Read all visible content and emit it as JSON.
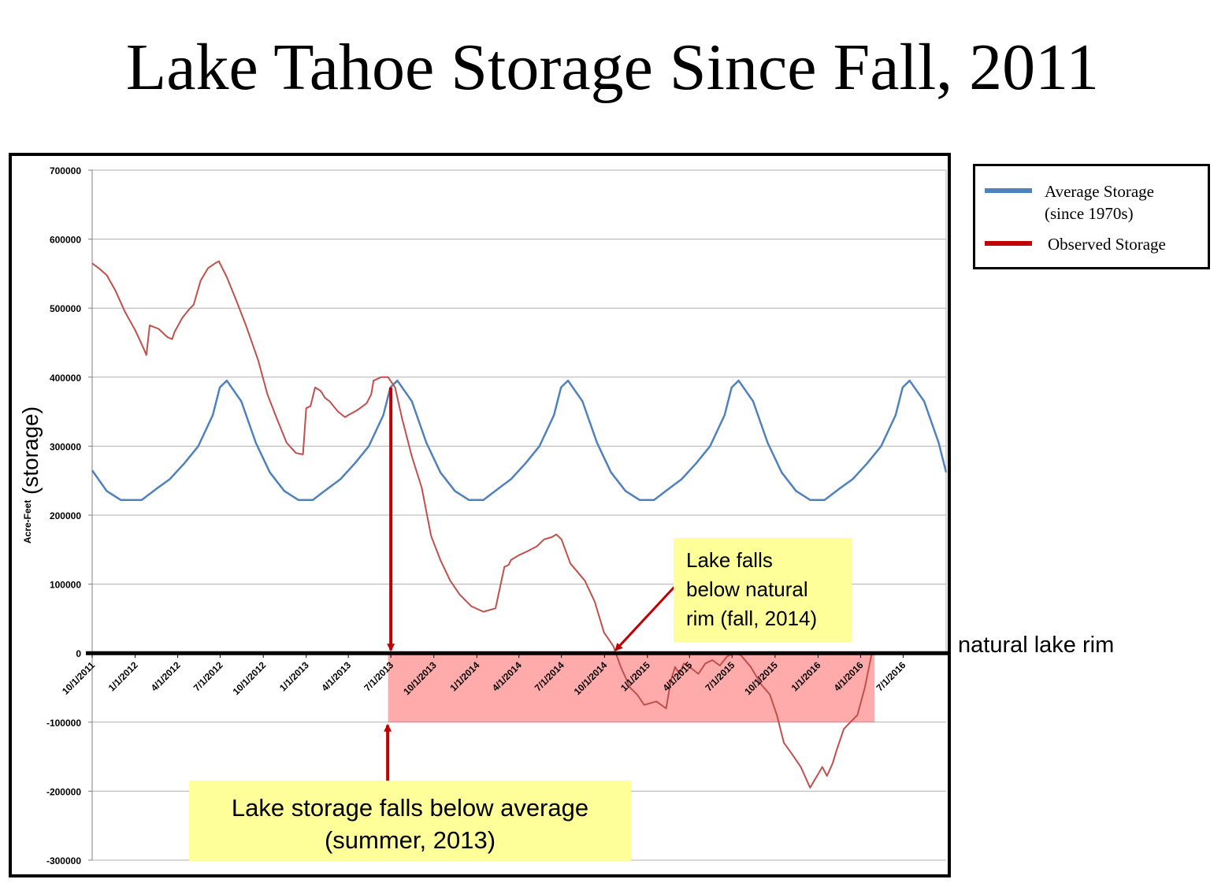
{
  "title": "Lake Tahoe Storage Since Fall, 2011",
  "legend": {
    "items": [
      {
        "label": "Average Storage\n(since 1970s)",
        "color": "#4f81bd"
      },
      {
        "label": "Observed Storage",
        "color": "#c00000"
      }
    ]
  },
  "annotations": {
    "rim_label": "natural lake rim",
    "callout_rim": "Lake falls\nbelow natural\nrim (fall, 2014)",
    "callout_average": "Lake storage falls below average\n(summer, 2013)"
  },
  "chart_data": {
    "type": "line",
    "title": "Lake Tahoe Storage Since Fall, 2011",
    "xlabel": "",
    "ylabel": "Acre-Feet",
    "ylabel_annotation": "(storage)",
    "ylim": [
      -300000,
      700000
    ],
    "yticks": [
      700000,
      600000,
      500000,
      400000,
      300000,
      200000,
      100000,
      0,
      -100000,
      -200000,
      -300000
    ],
    "xlim": [
      "10/1/2011",
      "10/1/2016"
    ],
    "xtick_labels": [
      "10/1/2011",
      "1/1/2012",
      "4/1/2012",
      "7/1/2012",
      "10/1/2012",
      "1/1/2013",
      "4/1/2013",
      "7/1/2013",
      "10/1/2013",
      "1/1/2014",
      "4/1/2014",
      "7/1/2014",
      "10/1/2014",
      "1/1/2015",
      "4/1/2015",
      "7/1/2015",
      "10/1/2015",
      "1/1/2016",
      "4/1/2016",
      "7/1/2016"
    ],
    "grid": "horizontal",
    "legend_position": "outside-right-top",
    "series": [
      {
        "name": "Average Storage",
        "color": "#4f81bd",
        "x": [
          "10/1/2011",
          "11/1/2011",
          "12/1/2011",
          "1/15/2012",
          "2/15/2012",
          "3/15/2012",
          "4/15/2012",
          "5/15/2012",
          "6/15/2012",
          "6/30/2012",
          "7/15/2012",
          "8/15/2012",
          "9/15/2012",
          "10/15/2012",
          "11/15/2012",
          "12/15/2012",
          "1/15/2013",
          "2/15/2013",
          "3/15/2013",
          "4/15/2013",
          "5/15/2013",
          "6/15/2013",
          "6/30/2013",
          "7/15/2013",
          "8/15/2013",
          "9/15/2013",
          "10/15/2013",
          "11/15/2013",
          "12/15/2013",
          "1/15/2014",
          "2/15/2014",
          "3/15/2014",
          "4/15/2014",
          "5/15/2014",
          "6/15/2014",
          "6/30/2014",
          "7/15/2014",
          "8/15/2014",
          "9/15/2014",
          "10/15/2014",
          "11/15/2014",
          "12/15/2014",
          "1/15/2015",
          "2/15/2015",
          "3/15/2015",
          "4/15/2015",
          "5/15/2015",
          "6/15/2015",
          "6/30/2015",
          "7/15/2015",
          "8/15/2015",
          "9/15/2015",
          "10/15/2015",
          "11/15/2015",
          "12/15/2015",
          "1/15/2016",
          "2/15/2016",
          "3/15/2016",
          "4/15/2016",
          "5/15/2016",
          "6/15/2016",
          "6/30/2016",
          "7/15/2016",
          "8/15/2016",
          "9/15/2016",
          "10/1/2016"
        ],
        "y": [
          265000,
          235000,
          222000,
          222000,
          238000,
          252000,
          275000,
          300000,
          345000,
          385000,
          395000,
          365000,
          305000,
          262000,
          235000,
          222000,
          222000,
          238000,
          252000,
          275000,
          300000,
          345000,
          385000,
          395000,
          365000,
          305000,
          262000,
          235000,
          222000,
          222000,
          238000,
          252000,
          275000,
          300000,
          345000,
          385000,
          395000,
          365000,
          305000,
          262000,
          235000,
          222000,
          222000,
          238000,
          252000,
          275000,
          300000,
          345000,
          385000,
          395000,
          365000,
          305000,
          262000,
          235000,
          222000,
          222000,
          238000,
          252000,
          275000,
          300000,
          345000,
          385000,
          395000,
          365000,
          305000,
          262000
        ]
      },
      {
        "name": "Observed Storage",
        "color": "#c0504d",
        "x": [
          "10/1/2011",
          "10/15/2011",
          "11/1/2011",
          "11/20/2011",
          "12/10/2011",
          "1/1/2012",
          "1/10/2012",
          "1/20/2012",
          "1/25/2012",
          "2/1/2012",
          "2/20/2012",
          "3/10/2012",
          "3/20/2012",
          "3/25/2012",
          "4/10/2012",
          "4/25/2012",
          "5/5/2012",
          "5/20/2012",
          "6/5/2012",
          "6/20/2012",
          "6/28/2012",
          "7/15/2012",
          "8/5/2012",
          "8/25/2012",
          "9/20/2012",
          "10/10/2012",
          "10/30/2012",
          "11/20/2012",
          "12/10/2012",
          "12/25/2012",
          "1/1/2013",
          "1/10/2013",
          "1/20/2013",
          "2/1/2013",
          "2/10/2013",
          "2/20/2013",
          "3/10/2013",
          "3/25/2013",
          "4/1/2013",
          "4/20/2013",
          "5/10/2013",
          "5/20/2013",
          "5/25/2013",
          "6/10/2013",
          "6/25/2013",
          "7/10/2013",
          "7/25/2013",
          "8/15/2013",
          "9/5/2013",
          "9/25/2013",
          "10/15/2013",
          "11/5/2013",
          "11/25/2013",
          "12/20/2013",
          "1/15/2014",
          "2/10/2014",
          "3/1/2014",
          "3/10/2014",
          "3/15/2014",
          "4/1/2014",
          "4/20/2014",
          "5/10/2014",
          "5/25/2014",
          "6/10/2014",
          "6/20/2014",
          "7/1/2014",
          "7/20/2014",
          "8/20/2014",
          "9/10/2014",
          "9/30/2014",
          "10/20/2014",
          "11/5/2014",
          "11/25/2014",
          "12/10/2014",
          "12/25/2014",
          "1/20/2015",
          "2/10/2015",
          "2/20/2015",
          "3/1/2015",
          "3/10/2015",
          "3/20/2015",
          "4/5/2015",
          "4/20/2015",
          "5/5/2015",
          "5/20/2015",
          "6/5/2015",
          "6/20/2015",
          "7/5/2015",
          "7/20/2015",
          "8/10/2015",
          "9/1/2015",
          "9/20/2015",
          "10/5/2015",
          "10/20/2015",
          "11/5/2015",
          "11/25/2015",
          "12/15/2015",
          "1/10/2016",
          "1/20/2016",
          "2/1/2016",
          "2/10/2016",
          "2/25/2016",
          "3/10/2016",
          "3/25/2016",
          "4/10/2016",
          "4/25/2016"
        ],
        "y": [
          565000,
          558000,
          548000,
          525000,
          495000,
          468000,
          455000,
          440000,
          432000,
          475000,
          470000,
          458000,
          455000,
          465000,
          485000,
          498000,
          505000,
          540000,
          558000,
          565000,
          568000,
          545000,
          510000,
          475000,
          425000,
          375000,
          340000,
          305000,
          290000,
          288000,
          355000,
          358000,
          385000,
          380000,
          370000,
          365000,
          350000,
          342000,
          345000,
          352000,
          362000,
          375000,
          395000,
          400000,
          400000,
          385000,
          340000,
          285000,
          240000,
          170000,
          135000,
          105000,
          85000,
          68000,
          60000,
          65000,
          125000,
          128000,
          135000,
          142000,
          148000,
          155000,
          165000,
          168000,
          172000,
          165000,
          130000,
          105000,
          75000,
          30000,
          10000,
          -20000,
          -50000,
          -60000,
          -75000,
          -70000,
          -80000,
          -40000,
          -20000,
          -30000,
          -15000,
          -22000,
          -30000,
          -15000,
          -10000,
          -18000,
          -5000,
          0,
          -3000,
          -20000,
          -45000,
          -60000,
          -90000,
          -130000,
          -145000,
          -165000,
          -195000,
          -165000,
          -178000,
          -160000,
          -140000,
          -110000,
          -100000,
          -90000,
          -50000,
          0
        ]
      }
    ],
    "annotations": [
      {
        "text": "natural lake rim",
        "y": 0
      },
      {
        "text": "Lake falls below natural rim (fall, 2014)",
        "x": "10/15/2014",
        "y": 0
      },
      {
        "text": "Lake storage falls below average (summer, 2013)",
        "x": "7/1/2013"
      }
    ],
    "shaded_region": {
      "x": [
        "6/25/2013",
        "5/1/2016"
      ],
      "y": [
        -100000,
        0
      ],
      "color": "#ff0000"
    }
  }
}
